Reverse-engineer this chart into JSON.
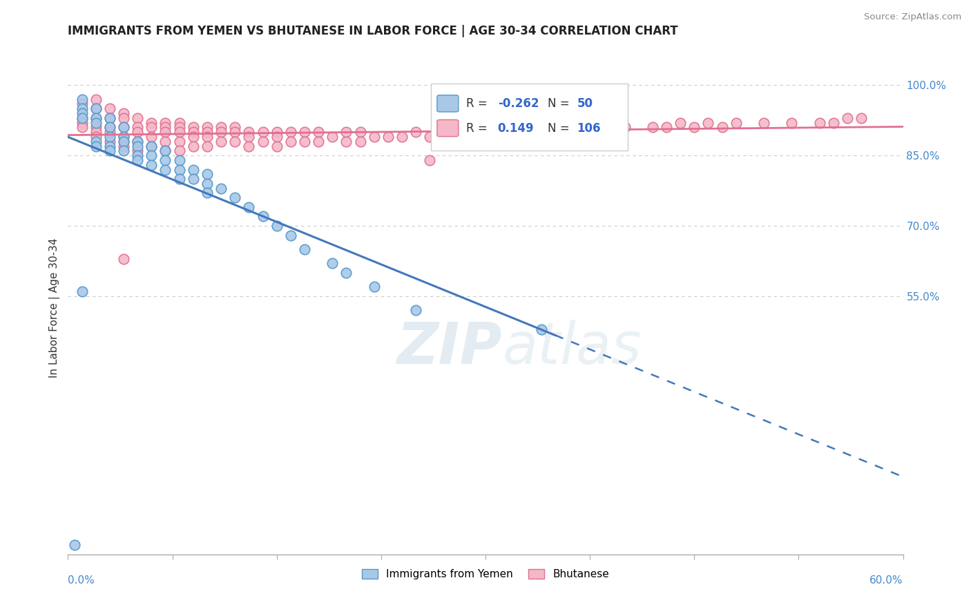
{
  "title": "IMMIGRANTS FROM YEMEN VS BHUTANESE IN LABOR FORCE | AGE 30-34 CORRELATION CHART",
  "source": "Source: ZipAtlas.com",
  "ylabel": "In Labor Force | Age 30-34",
  "color_yemen": "#a8c8e8",
  "color_yemen_edge": "#5599cc",
  "color_yemen_line": "#4477bb",
  "color_bhutan": "#f4b8c8",
  "color_bhutan_edge": "#e07090",
  "color_bhutan_line": "#e07090",
  "watermark_color": "#ccdde8",
  "xmin": 0.0,
  "xmax": 0.6,
  "ymin": 0.0,
  "ymax": 1.05,
  "right_ytick_vals": [
    0.55,
    0.7,
    0.85,
    1.0
  ],
  "right_ytick_labels": [
    "55.0%",
    "70.0%",
    "85.0%",
    "100.0%"
  ],
  "yemen_R": -0.262,
  "yemen_N": 50,
  "bhutan_R": 0.149,
  "bhutan_N": 106,
  "yemen_x": [
    0.01,
    0.01,
    0.01,
    0.01,
    0.02,
    0.02,
    0.02,
    0.02,
    0.02,
    0.03,
    0.03,
    0.03,
    0.03,
    0.03,
    0.04,
    0.04,
    0.04,
    0.04,
    0.05,
    0.05,
    0.05,
    0.05,
    0.06,
    0.06,
    0.06,
    0.07,
    0.07,
    0.07,
    0.08,
    0.08,
    0.08,
    0.09,
    0.09,
    0.1,
    0.1,
    0.1,
    0.11,
    0.12,
    0.13,
    0.14,
    0.15,
    0.16,
    0.17,
    0.19,
    0.2,
    0.22,
    0.25,
    0.01,
    0.34,
    0.005
  ],
  "yemen_y": [
    0.97,
    0.95,
    0.94,
    0.93,
    0.95,
    0.93,
    0.92,
    0.88,
    0.87,
    0.93,
    0.91,
    0.89,
    0.87,
    0.86,
    0.91,
    0.89,
    0.88,
    0.86,
    0.88,
    0.87,
    0.85,
    0.84,
    0.87,
    0.85,
    0.83,
    0.86,
    0.84,
    0.82,
    0.84,
    0.82,
    0.8,
    0.82,
    0.8,
    0.81,
    0.79,
    0.77,
    0.78,
    0.76,
    0.74,
    0.72,
    0.7,
    0.68,
    0.65,
    0.62,
    0.6,
    0.57,
    0.52,
    0.56,
    0.48,
    0.02
  ],
  "bhutan_x": [
    0.01,
    0.01,
    0.01,
    0.01,
    0.02,
    0.02,
    0.02,
    0.02,
    0.02,
    0.02,
    0.03,
    0.03,
    0.03,
    0.03,
    0.03,
    0.04,
    0.04,
    0.04,
    0.04,
    0.04,
    0.04,
    0.05,
    0.05,
    0.05,
    0.05,
    0.05,
    0.06,
    0.06,
    0.06,
    0.06,
    0.07,
    0.07,
    0.07,
    0.07,
    0.07,
    0.08,
    0.08,
    0.08,
    0.08,
    0.08,
    0.09,
    0.09,
    0.09,
    0.09,
    0.1,
    0.1,
    0.1,
    0.1,
    0.11,
    0.11,
    0.11,
    0.12,
    0.12,
    0.12,
    0.13,
    0.13,
    0.13,
    0.14,
    0.14,
    0.15,
    0.15,
    0.15,
    0.16,
    0.16,
    0.17,
    0.17,
    0.18,
    0.18,
    0.19,
    0.2,
    0.2,
    0.21,
    0.21,
    0.22,
    0.23,
    0.24,
    0.25,
    0.26,
    0.27,
    0.28,
    0.29,
    0.3,
    0.31,
    0.32,
    0.33,
    0.35,
    0.36,
    0.37,
    0.38,
    0.39,
    0.4,
    0.42,
    0.43,
    0.44,
    0.45,
    0.46,
    0.47,
    0.48,
    0.5,
    0.52,
    0.54,
    0.55,
    0.56,
    0.57,
    0.04,
    0.26
  ],
  "bhutan_y": [
    0.96,
    0.93,
    0.92,
    0.91,
    0.97,
    0.95,
    0.93,
    0.91,
    0.9,
    0.89,
    0.95,
    0.93,
    0.91,
    0.9,
    0.88,
    0.94,
    0.93,
    0.91,
    0.89,
    0.88,
    0.87,
    0.93,
    0.91,
    0.9,
    0.88,
    0.86,
    0.92,
    0.91,
    0.89,
    0.87,
    0.92,
    0.91,
    0.9,
    0.88,
    0.86,
    0.92,
    0.91,
    0.9,
    0.88,
    0.86,
    0.91,
    0.9,
    0.89,
    0.87,
    0.91,
    0.9,
    0.89,
    0.87,
    0.91,
    0.9,
    0.88,
    0.91,
    0.9,
    0.88,
    0.9,
    0.89,
    0.87,
    0.9,
    0.88,
    0.9,
    0.89,
    0.87,
    0.9,
    0.88,
    0.9,
    0.88,
    0.9,
    0.88,
    0.89,
    0.9,
    0.88,
    0.9,
    0.88,
    0.89,
    0.89,
    0.89,
    0.9,
    0.89,
    0.89,
    0.9,
    0.89,
    0.9,
    0.89,
    0.9,
    0.9,
    0.91,
    0.9,
    0.91,
    0.9,
    0.91,
    0.91,
    0.91,
    0.91,
    0.92,
    0.91,
    0.92,
    0.91,
    0.92,
    0.92,
    0.92,
    0.92,
    0.92,
    0.93,
    0.93,
    0.63,
    0.84
  ]
}
